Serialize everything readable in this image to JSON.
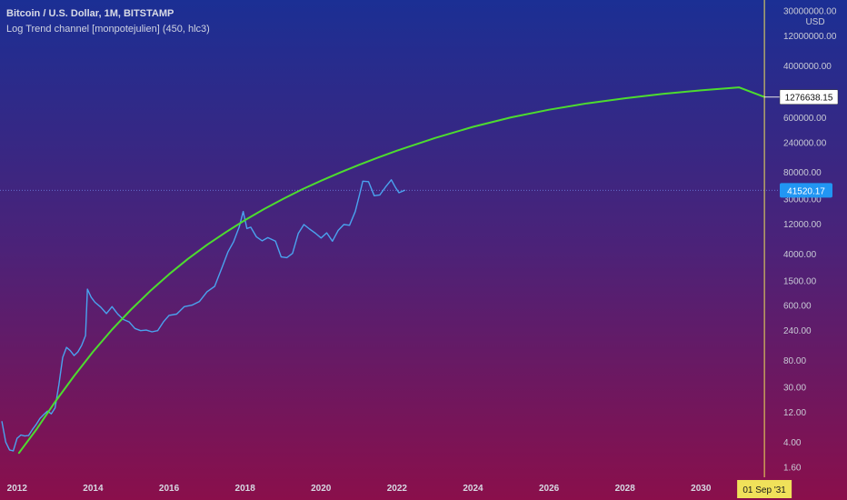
{
  "header": {
    "title": "Bitcoin / U.S. Dollar, 1M, BITSTAMP",
    "indicator": "Log Trend channel [monpotejulien] (450, hlc3)"
  },
  "price_axis": {
    "unit": "USD",
    "ticks": [
      {
        "label": "30000000.00",
        "value": 30000000
      },
      {
        "label": "12000000.00",
        "value": 12000000
      },
      {
        "label": "4000000.00",
        "value": 4000000
      },
      {
        "label": "600000.00",
        "value": 600000
      },
      {
        "label": "240000.00",
        "value": 240000
      },
      {
        "label": "80000.00",
        "value": 80000
      },
      {
        "label": "30000.00",
        "value": 30000
      },
      {
        "label": "12000.00",
        "value": 12000
      },
      {
        "label": "4000.00",
        "value": 4000
      },
      {
        "label": "1500.00",
        "value": 1500
      },
      {
        "label": "600.00",
        "value": 600
      },
      {
        "label": "240.00",
        "value": 240
      },
      {
        "label": "80.00",
        "value": 80
      },
      {
        "label": "30.00",
        "value": 30
      },
      {
        "label": "12.00",
        "value": 12
      },
      {
        "label": "4.00",
        "value": 4
      },
      {
        "label": "1.60",
        "value": 1.6
      }
    ],
    "price_tag": {
      "label": "41520.17",
      "value": 41520.17
    },
    "trend_tag": {
      "label": "1276638.15",
      "value": 1276638.15
    }
  },
  "time_axis": {
    "ticks": [
      {
        "label": "2012",
        "x": 2012
      },
      {
        "label": "2014",
        "x": 2014
      },
      {
        "label": "2016",
        "x": 2016
      },
      {
        "label": "2018",
        "x": 2018
      },
      {
        "label": "2020",
        "x": 2020
      },
      {
        "label": "2022",
        "x": 2022
      },
      {
        "label": "2024",
        "x": 2024
      },
      {
        "label": "2026",
        "x": 2026
      },
      {
        "label": "2028",
        "x": 2028
      },
      {
        "label": "2030",
        "x": 2030
      }
    ],
    "cursor_label": "01 Sep '31",
    "cursor_x": 2031.67
  },
  "chart_data": {
    "type": "line",
    "scale": "log",
    "ylim": [
      1.1,
      45000000
    ],
    "xlim": [
      2011.55,
      2032.05
    ],
    "colors": {
      "price": "#4aa3ef",
      "trend": "#4ddc2f",
      "cursor": "#f0e15a",
      "tag": "#2196f3",
      "bg_top": "#1b2f94",
      "bg_bottom": "#8a0f4b"
    },
    "series": [
      {
        "key": "price",
        "x": [
          2011.6,
          2011.7,
          2011.8,
          2011.9,
          2012.0,
          2012.1,
          2012.2,
          2012.3,
          2012.4,
          2012.5,
          2012.6,
          2012.7,
          2012.8,
          2012.9,
          2013.0,
          2013.1,
          2013.2,
          2013.3,
          2013.4,
          2013.5,
          2013.6,
          2013.7,
          2013.8,
          2013.85,
          2013.95,
          2014.05,
          2014.2,
          2014.35,
          2014.5,
          2014.65,
          2014.8,
          2014.95,
          2015.1,
          2015.25,
          2015.4,
          2015.55,
          2015.7,
          2015.85,
          2016.0,
          2016.2,
          2016.4,
          2016.6,
          2016.8,
          2017.0,
          2017.2,
          2017.4,
          2017.55,
          2017.7,
          2017.85,
          2017.95,
          2018.05,
          2018.15,
          2018.3,
          2018.45,
          2018.6,
          2018.8,
          2018.95,
          2019.1,
          2019.25,
          2019.4,
          2019.55,
          2019.7,
          2019.85,
          2020.0,
          2020.15,
          2020.3,
          2020.45,
          2020.6,
          2020.75,
          2020.9,
          2021.0,
          2021.1,
          2021.25,
          2021.4,
          2021.55,
          2021.7,
          2021.85,
          2021.95,
          2022.05,
          2022.2
        ],
        "values": [
          8.5,
          4.0,
          3.0,
          2.9,
          4.6,
          5.2,
          5.0,
          5.1,
          6.3,
          7.6,
          9.5,
          11.0,
          12.5,
          11.3,
          14.0,
          33.0,
          90.0,
          130.0,
          115.0,
          96.0,
          110.0,
          140.0,
          200.0,
          1100.0,
          820.0,
          680.0,
          570.0,
          450.0,
          580.0,
          440.0,
          360.0,
          330.0,
          260.0,
          240.0,
          245.0,
          230.0,
          240.0,
          330.0,
          420.0,
          440.0,
          580.0,
          610.0,
          700.0,
          1000.0,
          1220.0,
          2500.0,
          4300.0,
          6300.0,
          11000.0,
          19000.0,
          10200.0,
          10700.0,
          7500.0,
          6500.0,
          7300.0,
          6400.0,
          3600.0,
          3500.0,
          4100.0,
          8500.0,
          11800.0,
          10000.0,
          8600.0,
          7200.0,
          8700.0,
          6400.0,
          9500.0,
          11800.0,
          11500.0,
          19000.0,
          33000.0,
          58000.0,
          57000.0,
          34000.0,
          35000.0,
          47000.0,
          61000.0,
          47000.0,
          38000.0,
          41520.17
        ]
      },
      {
        "key": "trend",
        "x": [
          2012.05,
          2012.5,
          2013.0,
          2013.5,
          2014.0,
          2014.5,
          2015.0,
          2015.5,
          2016.0,
          2016.5,
          2017.0,
          2017.5,
          2018.0,
          2018.5,
          2019.0,
          2019.5,
          2020.0,
          2020.5,
          2021.0,
          2021.5,
          2022.0,
          2023.0,
          2024.0,
          2025.0,
          2026.0,
          2027.0,
          2028.0,
          2029.0,
          2030.0,
          2031.0,
          2031.67
        ],
        "values": [
          2.69,
          6.26,
          17.5,
          45.3,
          110.5,
          250.0,
          520.0,
          1020.0,
          1900.0,
          3350.0,
          5600.0,
          8950.0,
          13900.0,
          20800.0,
          30200.0,
          42800.0,
          59000.0,
          79800.0,
          106000.0,
          138000.0,
          178000.0,
          283000.0,
          427000.0,
          605000.0,
          799000.0,
          1010000.0,
          1220000.0,
          1430000.0,
          1630000.0,
          1820000.0,
          1276638.15
        ]
      }
    ]
  }
}
